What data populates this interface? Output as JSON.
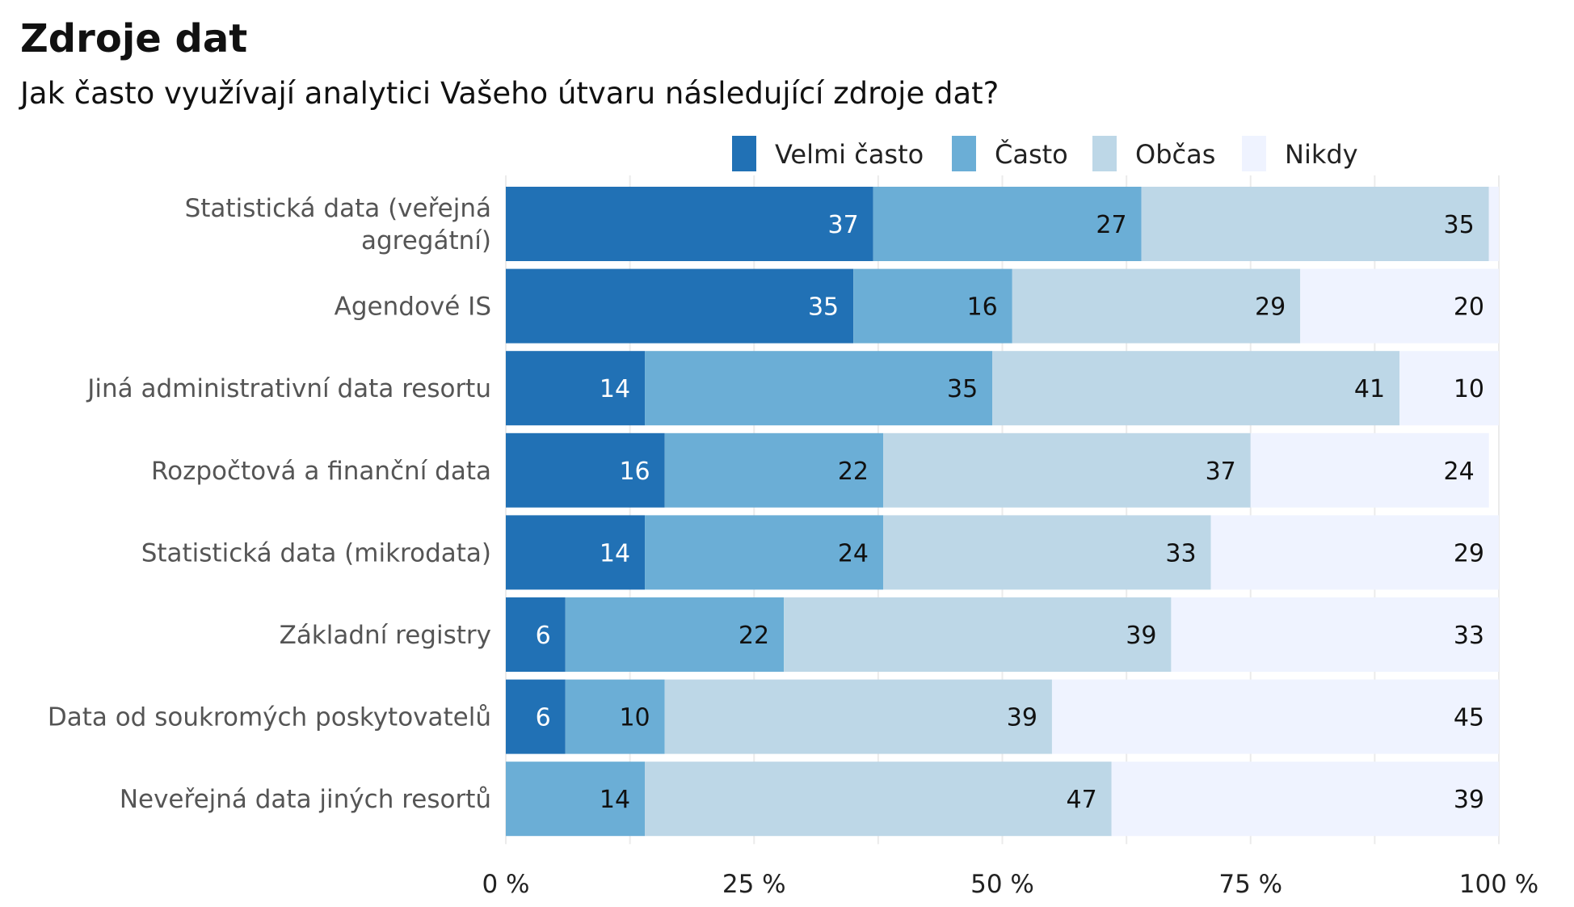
{
  "chart_data": {
    "type": "bar",
    "orientation": "horizontal",
    "stacked": true,
    "title": "Zdroje dat",
    "subtitle": "Jak často využívají analytici Vašeho útvaru následující zdroje dat?",
    "xlabel": "",
    "ylabel": "",
    "xlim": [
      0,
      100
    ],
    "x_ticks": [
      "0 %",
      "25 %",
      "50 %",
      "75 %",
      "100 %"
    ],
    "x_tick_values": [
      0,
      25,
      50,
      75,
      100
    ],
    "grid": true,
    "legend_position": "top-right",
    "categories": [
      "Statistická data (veřejná agregátní)",
      "Agendové IS",
      "Jiná administrativní data resortu",
      "Rozpočtová a finanční data",
      "Statistická data (mikrodata)",
      "Základní registry",
      "Data od soukromých poskytovatelů",
      "Neveřejná data jiných resortů"
    ],
    "category_lines": [
      [
        "Statistická data (veřejná",
        "agregátní)"
      ],
      [
        "Agendové IS"
      ],
      [
        "Jiná administrativní data resortu"
      ],
      [
        "Rozpočtová a finanční data"
      ],
      [
        "Statistická data (mikrodata)"
      ],
      [
        "Základní registry"
      ],
      [
        "Data od soukromých poskytovatelů"
      ],
      [
        "Neveřejná data jiných resortů"
      ]
    ],
    "series": [
      {
        "name": "Velmi často",
        "color": "#2171b5",
        "label_color": "#ffffff",
        "values": [
          37,
          35,
          14,
          16,
          14,
          6,
          6,
          0
        ]
      },
      {
        "name": "Často",
        "color": "#6baed6",
        "label_color": "#111111",
        "values": [
          27,
          16,
          35,
          22,
          24,
          22,
          10,
          14
        ]
      },
      {
        "name": "Občas",
        "color": "#bdd7e7",
        "label_color": "#111111",
        "values": [
          35,
          29,
          41,
          37,
          33,
          39,
          39,
          47
        ]
      },
      {
        "name": "Nikdy",
        "color": "#eff3ff",
        "label_color": "#111111",
        "values": [
          1,
          20,
          10,
          24,
          29,
          33,
          45,
          39
        ]
      }
    ],
    "data_labels": [
      [
        "37",
        "27",
        "35",
        ""
      ],
      [
        "35",
        "16",
        "29",
        "20"
      ],
      [
        "14",
        "35",
        "41",
        "10"
      ],
      [
        "16",
        "22",
        "37",
        "24"
      ],
      [
        "14",
        "24",
        "33",
        "29"
      ],
      [
        "6",
        "22",
        "39",
        "33"
      ],
      [
        "6",
        "10",
        "39",
        "45"
      ],
      [
        "",
        "14",
        "47",
        "39"
      ]
    ]
  }
}
